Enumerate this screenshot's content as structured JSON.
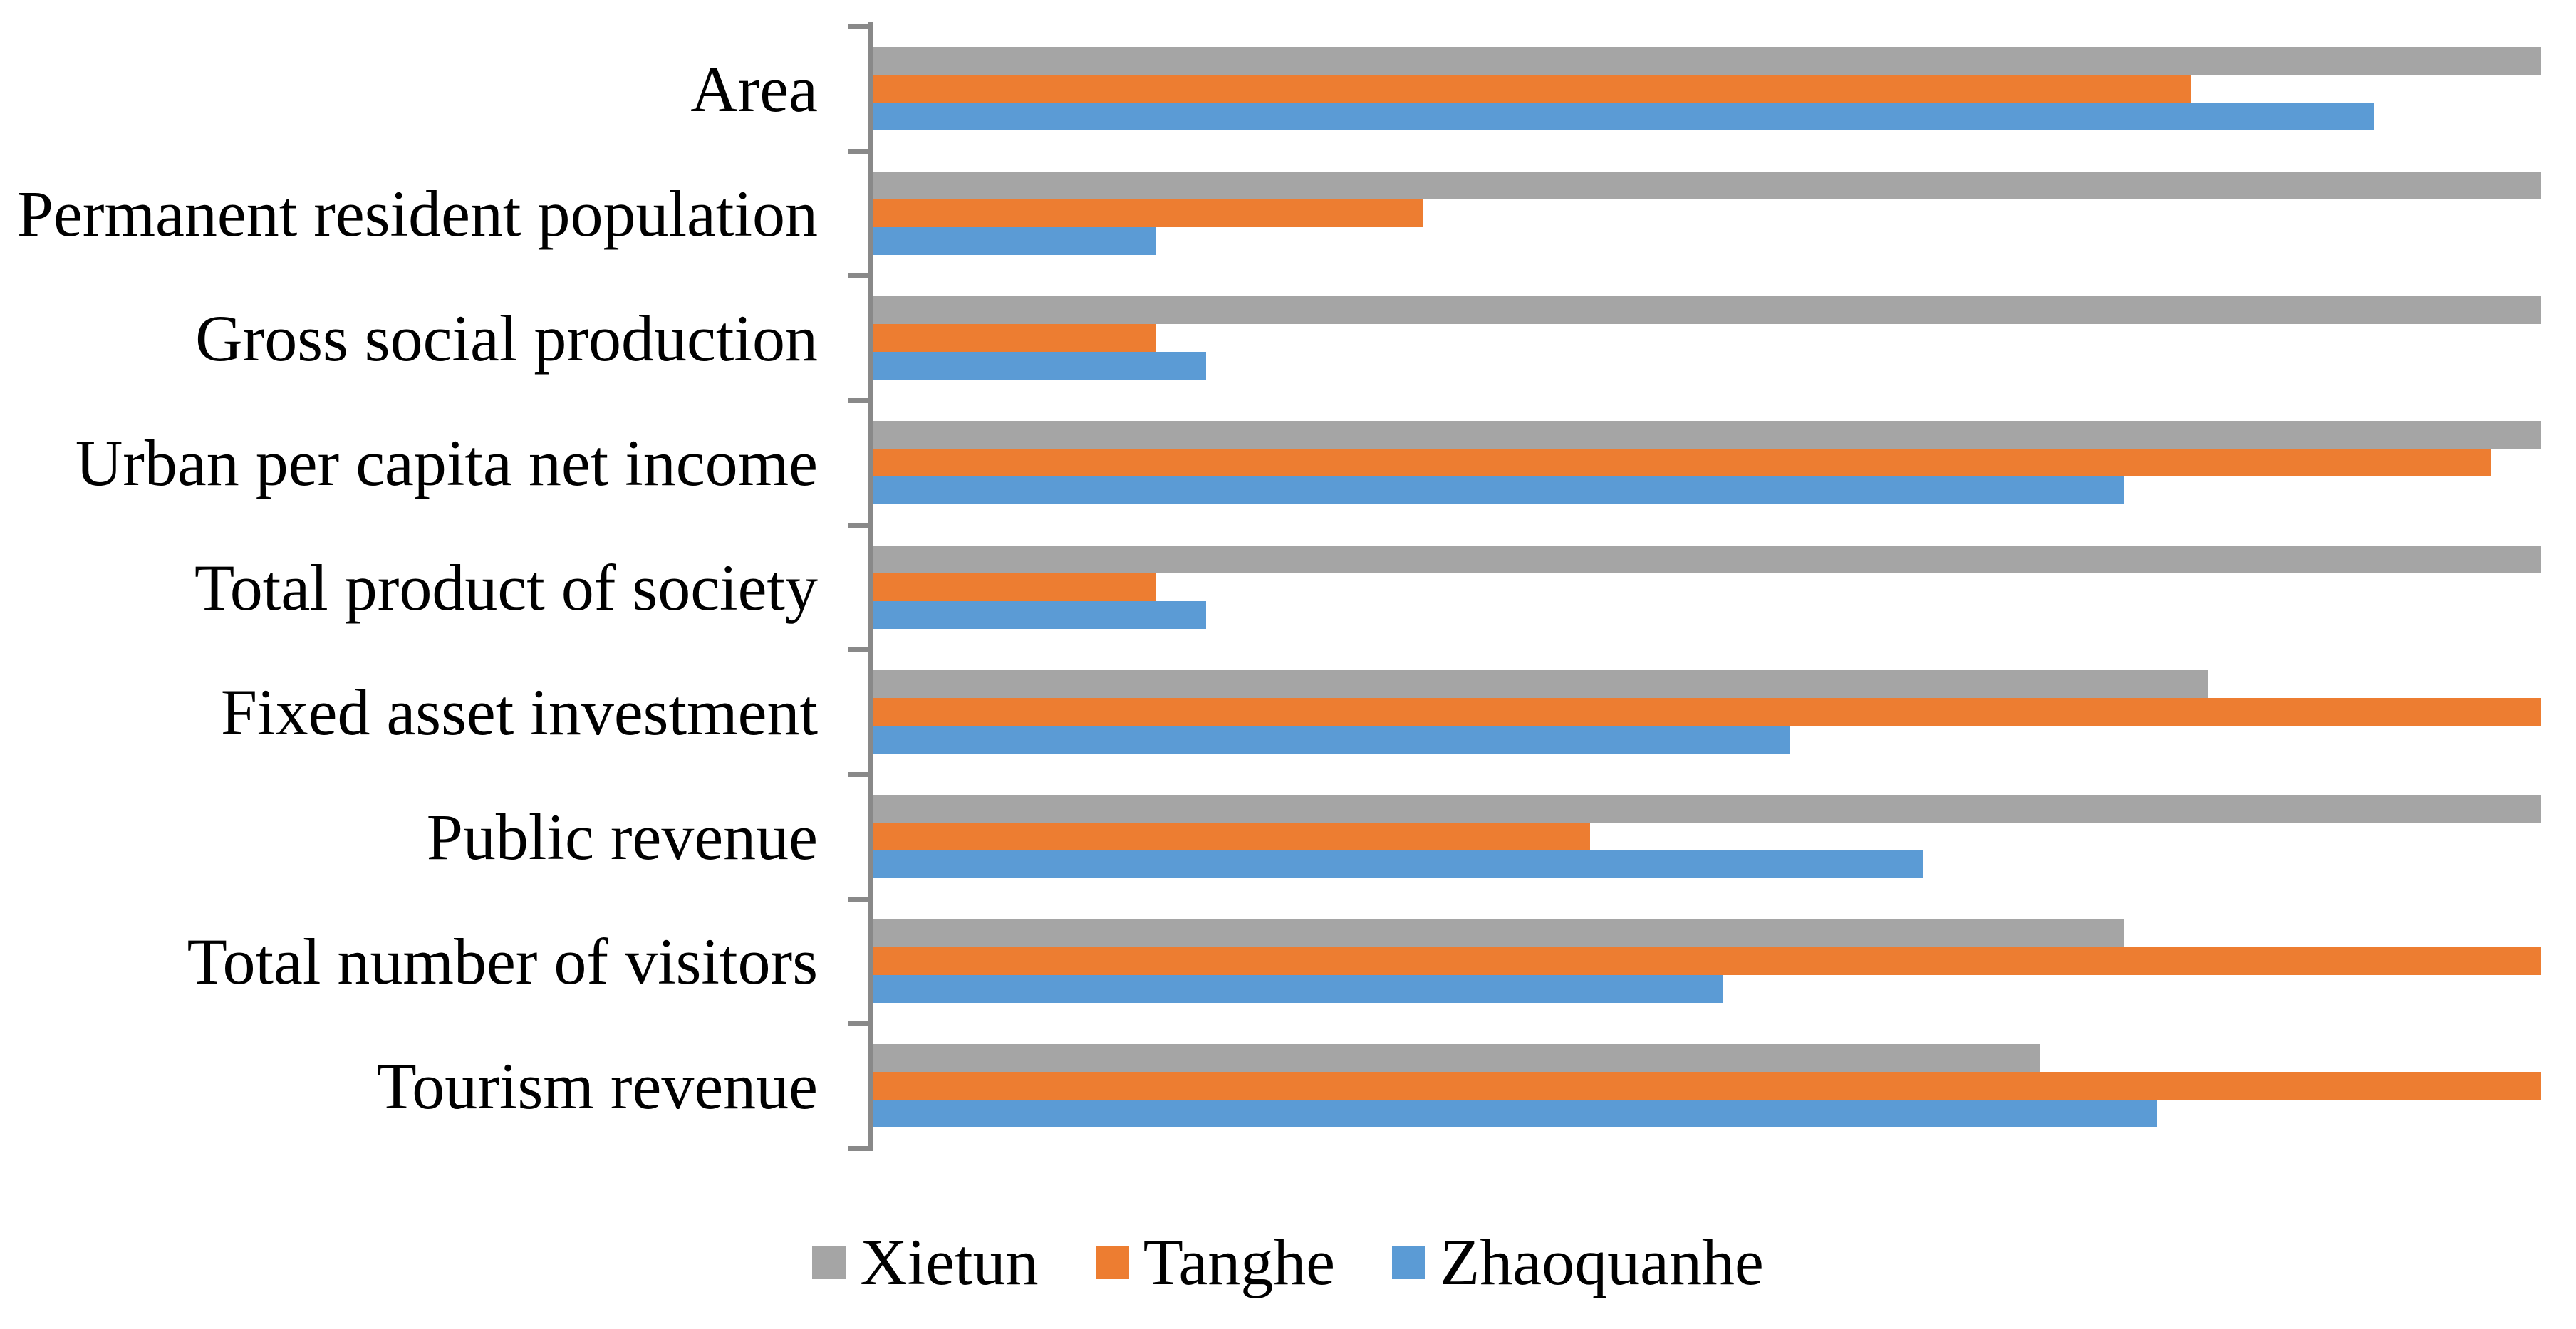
{
  "chart_data": {
    "type": "bar",
    "orientation": "horizontal",
    "title": "",
    "xlabel": "",
    "ylabel": "",
    "grid": false,
    "legend_position": "bottom",
    "axis_color": "#898989",
    "background_color": "#FFFFFF",
    "xlim": [
      0,
      1
    ],
    "value_note": "No numeric axis is shown; values are bar lengths as a fraction of the full plot width (estimated from pixels).",
    "categories": [
      "Area",
      "Permanent resident population",
      "Gross social production",
      "Urban per capita net income",
      "Total product of society",
      "Fixed asset investment",
      "Public revenue",
      "Total number of visitors",
      "Tourism revenue"
    ],
    "series": [
      {
        "name": "Xietun",
        "color": "#A5A5A5",
        "values": [
          1.0,
          1.0,
          1.0,
          1.0,
          1.0,
          0.8,
          1.0,
          0.75,
          0.7
        ]
      },
      {
        "name": "Tanghe",
        "color": "#ED7D31",
        "values": [
          0.79,
          0.33,
          0.17,
          0.97,
          0.17,
          1.0,
          0.43,
          1.0,
          1.0
        ]
      },
      {
        "name": "Zhaoquanhe",
        "color": "#5B9BD5",
        "values": [
          0.9,
          0.17,
          0.2,
          0.75,
          0.2,
          0.55,
          0.63,
          0.51,
          0.77
        ]
      }
    ]
  }
}
